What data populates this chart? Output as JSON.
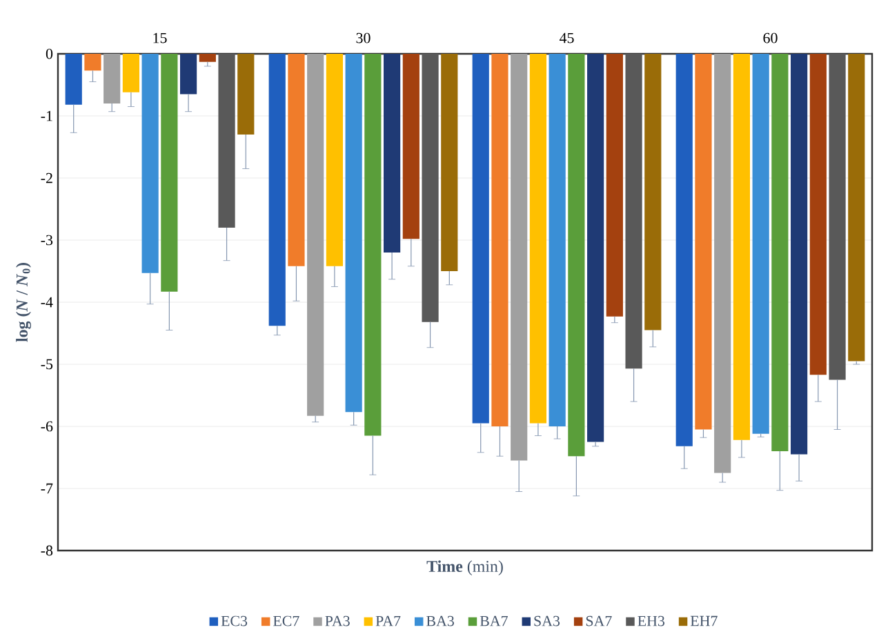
{
  "chart_data": {
    "type": "bar",
    "xlabel": "**Time** (min)",
    "ylabel": "log (*N* / *N*$_{0}$)",
    "categories": [
      "15",
      "30",
      "45",
      "60"
    ],
    "ylim": [
      -8,
      0
    ],
    "yticks": [
      0,
      -1,
      -2,
      -3,
      -4,
      -5,
      -6,
      -7,
      -8
    ],
    "grid": "y",
    "legend": "bottom",
    "series": [
      {
        "name": "EC3",
        "color": "#1f5fbf",
        "values": [
          -0.82,
          -4.38,
          -5.95,
          -6.32
        ],
        "errors": [
          [
            -1.27,
            -0.82
          ],
          [
            -4.53,
            -4.38
          ],
          [
            -6.42,
            -5.95
          ],
          [
            -6.68,
            -6.32
          ]
        ]
      },
      {
        "name": "EC7",
        "color": "#f07c2a",
        "values": [
          -0.27,
          -3.42,
          -6.0,
          -6.05
        ],
        "errors": [
          [
            -0.45,
            -0.27
          ],
          [
            -3.98,
            -3.42
          ],
          [
            -6.48,
            -6.0
          ],
          [
            -6.18,
            -6.05
          ]
        ]
      },
      {
        "name": "PA3",
        "color": "#a0a0a0",
        "values": [
          -0.8,
          -5.83,
          -6.55,
          -6.75
        ],
        "errors": [
          [
            -0.93,
            -0.8
          ],
          [
            -5.93,
            -5.83
          ],
          [
            -7.05,
            -6.55
          ],
          [
            -6.9,
            -6.75
          ]
        ]
      },
      {
        "name": "PA7",
        "color": "#ffc000",
        "values": [
          -0.62,
          -3.42,
          -5.95,
          -6.22
        ],
        "errors": [
          [
            -0.85,
            -0.62
          ],
          [
            -3.75,
            -3.42
          ],
          [
            -6.15,
            -5.95
          ],
          [
            -6.5,
            -6.22
          ]
        ]
      },
      {
        "name": "BA3",
        "color": "#3a8fd6",
        "values": [
          -3.53,
          -5.77,
          -6.0,
          -6.12
        ],
        "errors": [
          [
            -4.03,
            -3.53
          ],
          [
            -5.98,
            -5.77
          ],
          [
            -6.2,
            -6.0
          ],
          [
            -6.17,
            -6.12
          ]
        ]
      },
      {
        "name": "BA7",
        "color": "#5a9e3a",
        "values": [
          -3.83,
          -6.15,
          -6.48,
          -6.4
        ],
        "errors": [
          [
            -4.45,
            -3.83
          ],
          [
            -6.78,
            -6.15
          ],
          [
            -7.12,
            -6.48
          ],
          [
            -7.03,
            -6.4
          ]
        ]
      },
      {
        "name": "SA3",
        "color": "#1f3a75",
        "values": [
          -0.65,
          -3.2,
          -6.25,
          -6.45
        ],
        "errors": [
          [
            -0.93,
            -0.65
          ],
          [
            -3.63,
            -3.2
          ],
          [
            -6.32,
            -6.25
          ],
          [
            -6.88,
            -6.45
          ]
        ]
      },
      {
        "name": "SA7",
        "color": "#a4410f",
        "values": [
          -0.13,
          -2.98,
          -4.23,
          -5.17
        ],
        "errors": [
          [
            -0.2,
            -0.13
          ],
          [
            -3.42,
            -2.98
          ],
          [
            -4.33,
            -4.23
          ],
          [
            -5.6,
            -5.17
          ]
        ]
      },
      {
        "name": "EH3",
        "color": "#595959",
        "values": [
          -2.8,
          -4.32,
          -5.07,
          -5.25
        ],
        "errors": [
          [
            -3.33,
            -2.8
          ],
          [
            -4.73,
            -4.32
          ],
          [
            -5.6,
            -5.07
          ],
          [
            -6.05,
            -5.25
          ]
        ]
      },
      {
        "name": "EH7",
        "color": "#9a6c08",
        "values": [
          -1.3,
          -3.5,
          -4.45,
          -4.95
        ],
        "errors": [
          [
            -1.85,
            -1.3
          ],
          [
            -3.72,
            -3.5
          ],
          [
            -4.72,
            -4.45
          ],
          [
            -5.0,
            -4.95
          ]
        ]
      }
    ]
  }
}
